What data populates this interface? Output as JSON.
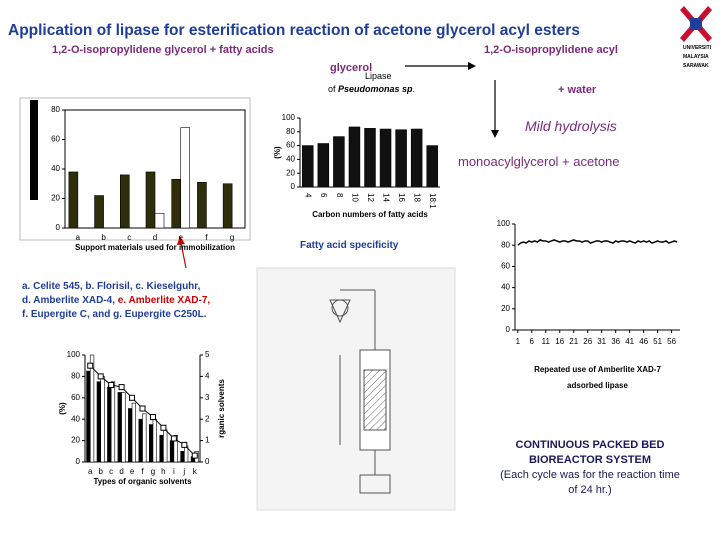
{
  "header": {
    "title": "Application of lipase for esterification reaction of acetone glycerol acyl esters",
    "logo": [
      "UNIVERSITI",
      "MALAYSIA",
      "SARAWAK"
    ]
  },
  "reaction": {
    "reactants": "1,2-O-isopropylidene glycerol  + fatty acids",
    "product_line1": "1,2-O-isopropylidene acyl",
    "product_line2": "glycerol",
    "enzyme": "Lipase",
    "source_prefix": "of ",
    "source": "Pseudomonas sp",
    "source_suffix": ".",
    "byproduct": "+ water",
    "step": "Mild hydrolysis",
    "result": "monoacylglycerol + acetone"
  },
  "support_legend": {
    "line1": "a. Celite 545, b. Florisil, c. Kieselguhr,",
    "line2_a": "d. Amberlite XAD-4, ",
    "line2_b": "e. Amberlite XAD-7,",
    "line3": "f. Eupergite C, and g. Eupergite C250L."
  },
  "fatty_caption": "Fatty acid specificity",
  "bioreactor_caption": {
    "line1": "CONTINUOUS PACKED BED",
    "line2": "BIOREACTOR SYSTEM",
    "line3": "(Each cycle was for the reaction time",
    "line4": "of 24 hr.)"
  },
  "chart_data": [
    {
      "type": "bar",
      "x_label": "Support materials used for immobilization",
      "categories": [
        "a",
        "b",
        "c",
        "d",
        "e",
        "f",
        "g"
      ],
      "series": [
        {
          "color": "#2e2e0a",
          "values": [
            38,
            22,
            36,
            38,
            33,
            31,
            30
          ]
        },
        {
          "color": "#ffffff",
          "values": [
            null,
            null,
            null,
            10,
            68,
            null,
            null
          ]
        }
      ],
      "ylim": [
        0,
        80
      ],
      "yticks": [
        0,
        20,
        40,
        60,
        80
      ]
    },
    {
      "type": "bar",
      "y_label": "(%)",
      "x_label": "Carbon numbers of fatty acids",
      "categories": [
        "4",
        "6",
        "8",
        "10",
        "12",
        "14",
        "16",
        "18",
        "18:1"
      ],
      "series": [
        {
          "color": "#111111",
          "values": [
            60,
            63,
            73,
            87,
            85,
            84,
            83,
            84,
            60
          ]
        }
      ],
      "ylim": [
        0,
        100
      ],
      "yticks": [
        0,
        20,
        40,
        60,
        80,
        100
      ]
    },
    {
      "type": "line",
      "x_label": "Repeated use of Amberlite XAD-7",
      "x_label2": "adsorbed lipase",
      "x": [
        1,
        2,
        3,
        4,
        5,
        6,
        7,
        8,
        9,
        10,
        11,
        12,
        13,
        14,
        15,
        16,
        17,
        18,
        19,
        20,
        21,
        22,
        23,
        24,
        25,
        26,
        27,
        28,
        29,
        30,
        31,
        32,
        33,
        34,
        35,
        36,
        37,
        38,
        39,
        40,
        41,
        42,
        43,
        44,
        45,
        46,
        47,
        48,
        49,
        50,
        51,
        52,
        53,
        54,
        55,
        56,
        57,
        58
      ],
      "series": [
        {
          "color": "#000000",
          "values": [
            80,
            82,
            83,
            82,
            84,
            83,
            84,
            83,
            85,
            84,
            84,
            83,
            84,
            85,
            84,
            83,
            84,
            84,
            83,
            84,
            85,
            84,
            84,
            83,
            84,
            84,
            82,
            83,
            84,
            84,
            83,
            84,
            84,
            83,
            82,
            84,
            83,
            84,
            84,
            83,
            84,
            83,
            82,
            84,
            83,
            84,
            83,
            84,
            82,
            83,
            84,
            83,
            83,
            84,
            82,
            83,
            84,
            83
          ]
        }
      ],
      "xlim": [
        0,
        59
      ],
      "xticks": [
        1,
        6,
        11,
        16,
        21,
        26,
        31,
        36,
        41,
        46,
        51,
        56
      ],
      "ylim": [
        0,
        100
      ],
      "yticks": [
        0,
        20,
        40,
        60,
        80,
        100
      ]
    },
    {
      "type": "bar",
      "y_label": "(%)",
      "y2_label": "rganic solvents",
      "x_label": "Types of organic solvents",
      "categories": [
        "a",
        "b",
        "c",
        "d",
        "e",
        "f",
        "g",
        "h",
        "i",
        "j",
        "k"
      ],
      "series": [
        {
          "color": "#000000",
          "values": [
            85,
            75,
            70,
            65,
            50,
            40,
            35,
            25,
            20,
            10,
            5
          ]
        },
        {
          "color": "#ffffff",
          "values": [
            100,
            80,
            75,
            65,
            55,
            45,
            40,
            30,
            25,
            15,
            10
          ]
        },
        {
          "type": "line",
          "axis": "y2",
          "color": "#000000",
          "values": [
            4.5,
            4.0,
            3.6,
            3.5,
            3.0,
            2.5,
            2.1,
            1.6,
            1.1,
            0.8,
            0.3
          ]
        }
      ],
      "ylim": [
        0,
        100
      ],
      "yticks": [
        0,
        20,
        40,
        60,
        80,
        100
      ],
      "y2lim": [
        0,
        5
      ],
      "y2ticks": [
        0,
        1,
        2,
        3,
        4,
        5
      ]
    }
  ]
}
